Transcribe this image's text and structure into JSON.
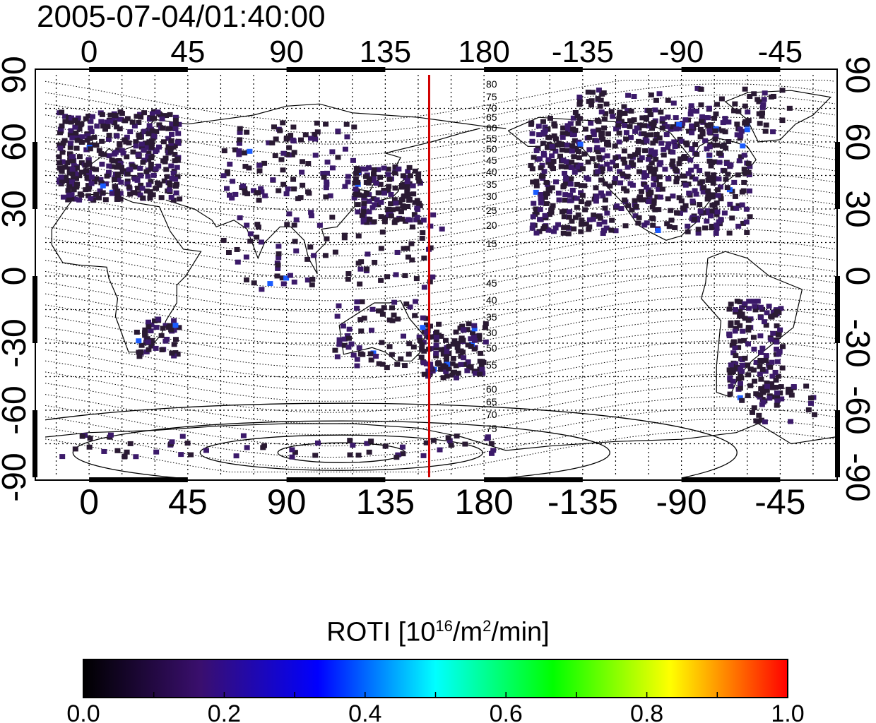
{
  "timestamp": "2005-07-04/01:40:00",
  "map": {
    "lon_ticks": [
      "0",
      "45",
      "90",
      "135",
      "180",
      "-135",
      "-90",
      "-45"
    ],
    "lat_ticks": [
      "90",
      "60",
      "30",
      "0",
      "-30",
      "-60",
      "-90"
    ],
    "lon_range": [
      -20,
      340
    ],
    "lat_range": [
      -90,
      90
    ],
    "grid": true,
    "terminator_line": {
      "lon": 155,
      "color": "#d10000"
    },
    "contour_labels": {
      "north": [
        "80",
        "75",
        "70",
        "65",
        "60",
        "55",
        "50",
        "45",
        "40",
        "35",
        "30",
        "25",
        "20",
        "15"
      ],
      "south": [
        "45",
        "40",
        "35",
        "30",
        "50",
        "55",
        "60",
        "65",
        "70",
        "75"
      ]
    },
    "data_colors": {
      "dark": "#2a1a33",
      "purple": "#3c1a6a",
      "blue": "#1a5cff"
    }
  },
  "colorbar": {
    "title_prefix": "ROTI  [10",
    "title_sup1": "16",
    "title_mid": "/m",
    "title_sup2": "2",
    "title_suffix": "/min]",
    "ticks": [
      "0.0",
      "0.2",
      "0.4",
      "0.6",
      "0.8",
      "1.0"
    ],
    "range": [
      0.0,
      1.0
    ],
    "colors": [
      "#000000",
      "#3a0f6e",
      "#0000ff",
      "#00ffff",
      "#00ff00",
      "#ffff00",
      "#ff0000"
    ]
  }
}
